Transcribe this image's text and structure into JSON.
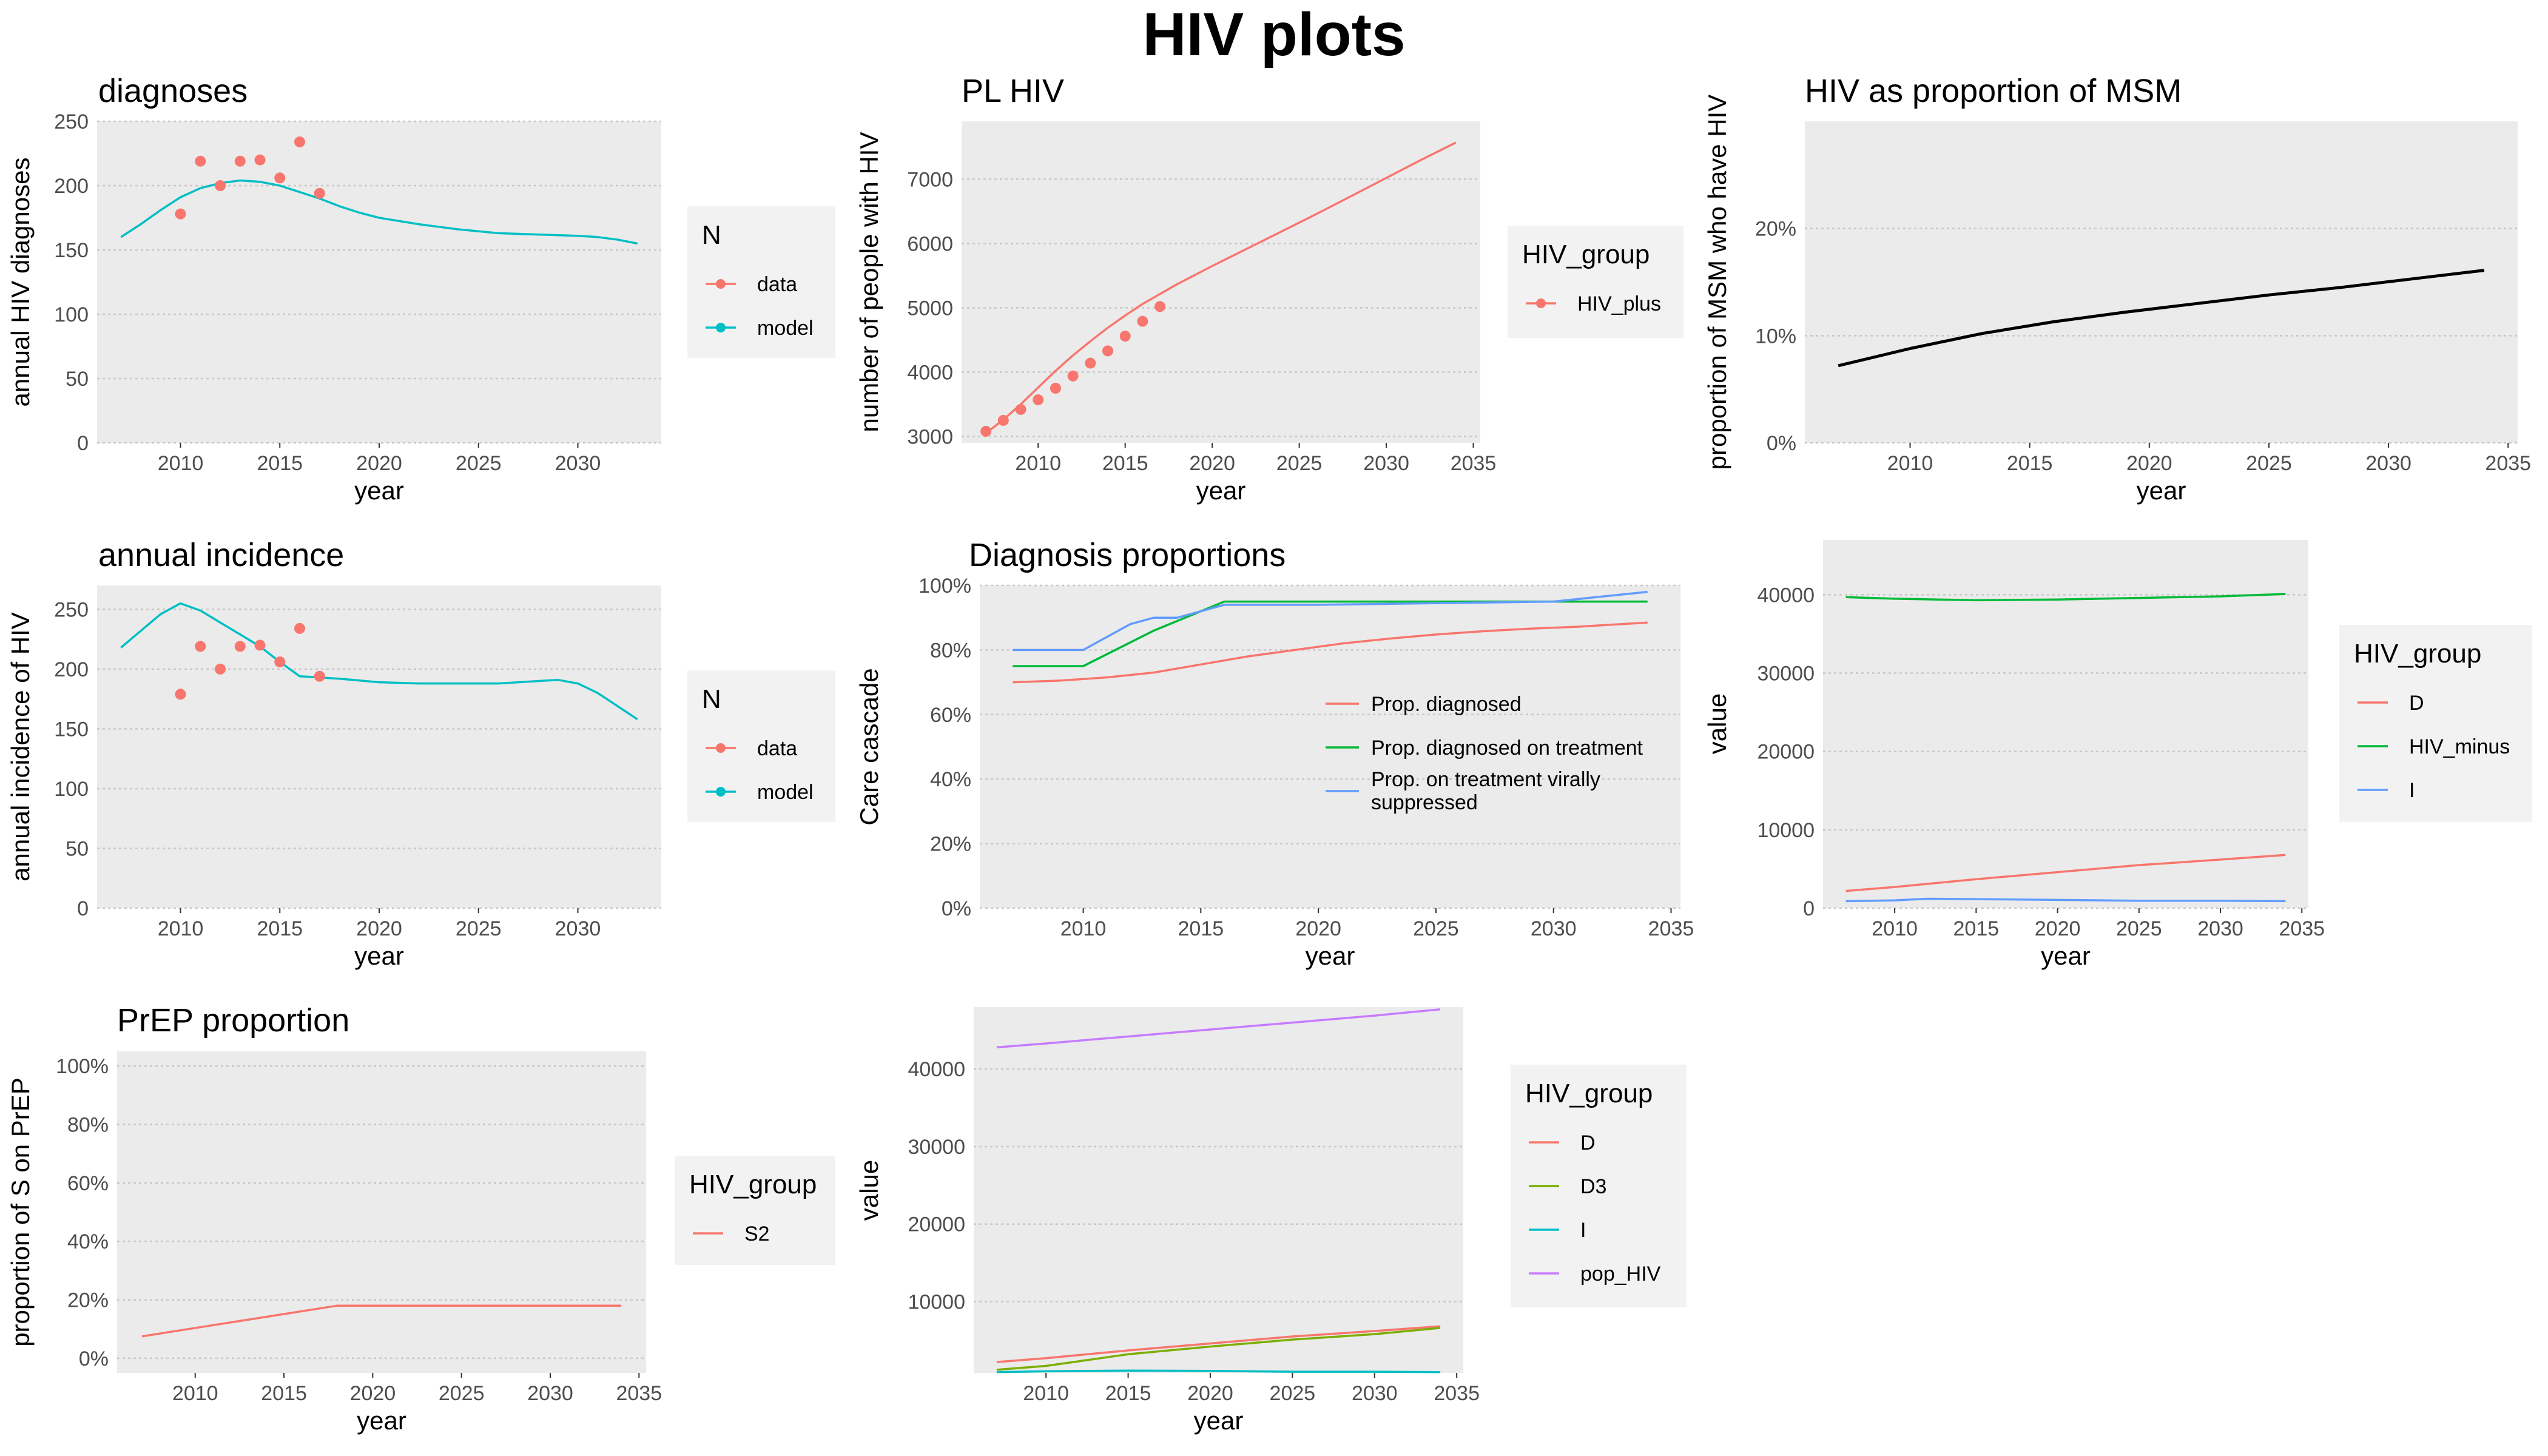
{
  "page": {
    "title": "HIV plots"
  },
  "colors": {
    "panel_bg": "#EBEBEB",
    "grid": "#C8C8C8",
    "axis_text": "#4D4D4D",
    "text": "#000000",
    "red": "#F8766D",
    "teal": "#00BFC4",
    "green3": "#00BA38",
    "blue3": "#619CFF",
    "olive4": "#7CAE00",
    "cyan4": "#00BFC4",
    "purple4": "#C77CFF",
    "black": "#000000"
  },
  "chart_data": [
    {
      "id": "diagnoses",
      "type": "line",
      "title": "diagnoses",
      "xlabel": "year",
      "ylabel": "annual HIV diagnoses",
      "xlim": [
        2005.8,
        2034.2
      ],
      "ylim": [
        0,
        250
      ],
      "x_ticks": [
        2010,
        2015,
        2020,
        2025,
        2030
      ],
      "y_ticks": [
        0,
        50,
        100,
        150,
        200,
        250
      ],
      "x_tick_labels": [
        "2010",
        "2015",
        "2020",
        "2025",
        "2030"
      ],
      "y_tick_labels": [
        "0",
        "50",
        "100",
        "150",
        "200",
        "250"
      ],
      "legend_position": "right",
      "legend": {
        "title": "N",
        "items": [
          {
            "label": "data",
            "color": "#F8766D",
            "line": true,
            "point": true
          },
          {
            "label": "model",
            "color": "#00BFC4",
            "line": true,
            "point": true
          }
        ]
      },
      "series": [
        {
          "name": "model",
          "kind": "line",
          "color": "#00BFC4",
          "x": [
            2007,
            2008,
            2009,
            2010,
            2011,
            2012,
            2013,
            2014,
            2015,
            2016,
            2017,
            2018,
            2019,
            2020,
            2022,
            2024,
            2026,
            2028,
            2030,
            2031,
            2032,
            2033
          ],
          "y": [
            160,
            170,
            181,
            191,
            198,
            202,
            204,
            203,
            200,
            195,
            190,
            184,
            179,
            175,
            170,
            166,
            163,
            162,
            161,
            160,
            158,
            155
          ]
        },
        {
          "name": "data",
          "kind": "points",
          "color": "#F8766D",
          "x": [
            2010,
            2011,
            2012,
            2013,
            2014,
            2015,
            2016,
            2017
          ],
          "y": [
            178,
            219,
            200,
            219,
            220,
            206,
            234,
            194
          ]
        }
      ]
    },
    {
      "id": "pl_hiv",
      "type": "line",
      "title": "PL HIV",
      "xlabel": "year",
      "ylabel": "number of people with HIV",
      "xlim": [
        2005.6,
        2035.4
      ],
      "ylim": [
        2900,
        7900
      ],
      "x_ticks": [
        2010,
        2015,
        2020,
        2025,
        2030,
        2035
      ],
      "y_ticks": [
        3000,
        4000,
        5000,
        6000,
        7000
      ],
      "x_tick_labels": [
        "2010",
        "2015",
        "2020",
        "2025",
        "2030",
        "2035"
      ],
      "y_tick_labels": [
        "3000",
        "4000",
        "5000",
        "6000",
        "7000"
      ],
      "legend_position": "right",
      "legend": {
        "title": "HIV_group",
        "items": [
          {
            "label": "HIV_plus",
            "color": "#F8766D",
            "line": true,
            "point": true
          }
        ]
      },
      "series": [
        {
          "name": "model",
          "kind": "line",
          "color": "#F8766D",
          "x": [
            2007,
            2008,
            2009,
            2010,
            2011,
            2012,
            2013,
            2014,
            2015,
            2016,
            2018,
            2020,
            2022,
            2024,
            2026,
            2028,
            2030,
            2032,
            2034
          ],
          "y": [
            3050,
            3260,
            3500,
            3760,
            4020,
            4260,
            4480,
            4690,
            4880,
            5060,
            5370,
            5650,
            5920,
            6190,
            6460,
            6740,
            7020,
            7300,
            7570
          ]
        },
        {
          "name": "data",
          "kind": "points",
          "color": "#F8766D",
          "x": [
            2007,
            2008,
            2009,
            2010,
            2011,
            2012,
            2013,
            2014,
            2015,
            2016,
            2017
          ],
          "y": [
            3080,
            3250,
            3420,
            3570,
            3750,
            3940,
            4140,
            4330,
            4560,
            4790,
            5020
          ]
        }
      ]
    },
    {
      "id": "hiv_prop_msm",
      "type": "line",
      "title": "HIV as proportion of MSM",
      "xlabel": "year",
      "ylabel": "proportion of MSM who have HIV",
      "xlim": [
        2005.6,
        2035.4
      ],
      "ylim": [
        0,
        0.3
      ],
      "x_ticks": [
        2010,
        2015,
        2020,
        2025,
        2030,
        2035
      ],
      "y_ticks": [
        0,
        0.1,
        0.2
      ],
      "x_tick_labels": [
        "2010",
        "2015",
        "2020",
        "2025",
        "2030",
        "2035"
      ],
      "y_tick_labels": [
        "0%",
        "10%",
        "20%"
      ],
      "legend_position": "none",
      "legend": null,
      "series": [
        {
          "name": "model",
          "kind": "line",
          "color": "#000000",
          "width": 5,
          "x": [
            2007,
            2010,
            2013,
            2016,
            2019,
            2022,
            2025,
            2028,
            2031,
            2034
          ],
          "y": [
            0.072,
            0.088,
            0.102,
            0.113,
            0.122,
            0.13,
            0.138,
            0.145,
            0.153,
            0.161
          ]
        }
      ]
    },
    {
      "id": "annual_incidence",
      "type": "line",
      "title": "annual incidence",
      "xlabel": "year",
      "ylabel": "annual incidence of HIV",
      "xlim": [
        2005.8,
        2034.2
      ],
      "ylim": [
        0,
        270
      ],
      "x_ticks": [
        2010,
        2015,
        2020,
        2025,
        2030
      ],
      "y_ticks": [
        0,
        50,
        100,
        150,
        200,
        250
      ],
      "x_tick_labels": [
        "2010",
        "2015",
        "2020",
        "2025",
        "2030"
      ],
      "y_tick_labels": [
        "0",
        "50",
        "100",
        "150",
        "200",
        "250"
      ],
      "legend_position": "right",
      "legend": {
        "title": "N",
        "items": [
          {
            "label": "data",
            "color": "#F8766D",
            "line": true,
            "point": true
          },
          {
            "label": "model",
            "color": "#00BFC4",
            "line": true,
            "point": true
          }
        ]
      },
      "series": [
        {
          "name": "model",
          "kind": "line",
          "color": "#00BFC4",
          "x": [
            2007,
            2008,
            2009,
            2010,
            2011,
            2012,
            2013,
            2014,
            2015,
            2016,
            2017,
            2018,
            2020,
            2022,
            2024,
            2026,
            2028,
            2029,
            2030,
            2031,
            2032,
            2033
          ],
          "y": [
            218,
            232,
            246,
            255,
            249,
            239,
            229,
            219,
            206,
            194,
            193,
            192,
            189,
            188,
            188,
            188,
            190,
            191,
            188,
            180,
            169,
            158
          ]
        },
        {
          "name": "data",
          "kind": "points",
          "color": "#F8766D",
          "x": [
            2010,
            2011,
            2012,
            2013,
            2014,
            2015,
            2016,
            2017
          ],
          "y": [
            179,
            219,
            200,
            219,
            220,
            206,
            234,
            194
          ]
        }
      ]
    },
    {
      "id": "diagnosis_proportions",
      "type": "line",
      "title": "Diagnosis proportions",
      "xlabel": "year",
      "ylabel": "Care cascade",
      "xlim": [
        2005.6,
        2035.4
      ],
      "ylim": [
        0,
        1.0
      ],
      "x_ticks": [
        2010,
        2015,
        2020,
        2025,
        2030,
        2035
      ],
      "y_ticks": [
        0,
        0.2,
        0.4,
        0.6,
        0.8,
        1.0
      ],
      "x_tick_labels": [
        "2010",
        "2015",
        "2020",
        "2025",
        "2030",
        "2035"
      ],
      "y_tick_labels": [
        "0%",
        "20%",
        "40%",
        "60%",
        "80%",
        "100%"
      ],
      "legend_position": "inside",
      "legend": {
        "title": "",
        "items": [
          {
            "label": "Prop. diagnosed",
            "color": "#F8766D",
            "line": true,
            "point": false
          },
          {
            "label": "Prop. diagnosed on treatment",
            "color": "#00BA38",
            "line": true,
            "point": false
          },
          {
            "label": "Prop. on treatment virally suppressed",
            "label_lines": [
              "Prop. on treatment virally",
              "suppressed"
            ],
            "color": "#619CFF",
            "line": true,
            "point": false
          }
        ]
      },
      "series": [
        {
          "name": "Prop. diagnosed",
          "kind": "line",
          "color": "#F8766D",
          "x": [
            2007,
            2009,
            2011,
            2013,
            2015,
            2017,
            2019,
            2021,
            2023,
            2025,
            2027,
            2029,
            2031,
            2034
          ],
          "y": [
            0.7,
            0.705,
            0.715,
            0.73,
            0.755,
            0.78,
            0.8,
            0.82,
            0.835,
            0.848,
            0.858,
            0.866,
            0.872,
            0.885
          ]
        },
        {
          "name": "Prop. diagnosed on treatment",
          "kind": "line",
          "color": "#00BA38",
          "x": [
            2007,
            2010,
            2013,
            2016,
            2020,
            2025,
            2030,
            2034
          ],
          "y": [
            0.75,
            0.75,
            0.86,
            0.95,
            0.95,
            0.95,
            0.95,
            0.95
          ]
        },
        {
          "name": "Prop. on treatment virally suppressed",
          "kind": "line",
          "color": "#619CFF",
          "x": [
            2007,
            2010,
            2012,
            2013,
            2014,
            2016,
            2020,
            2025,
            2030,
            2034
          ],
          "y": [
            0.8,
            0.8,
            0.88,
            0.9,
            0.9,
            0.94,
            0.94,
            0.945,
            0.95,
            0.98
          ]
        }
      ]
    },
    {
      "id": "groups_d_hivminus_i",
      "type": "line",
      "title": "",
      "xlabel": "year",
      "ylabel": "value",
      "xlim": [
        2005.6,
        2035.4
      ],
      "ylim": [
        0,
        47000
      ],
      "x_ticks": [
        2010,
        2015,
        2020,
        2025,
        2030,
        2035
      ],
      "y_ticks": [
        0,
        10000,
        20000,
        30000,
        40000
      ],
      "x_tick_labels": [
        "2010",
        "2015",
        "2020",
        "2025",
        "2030",
        "2035"
      ],
      "y_tick_labels": [
        "0",
        "10000",
        "20000",
        "30000",
        "40000"
      ],
      "legend_position": "right",
      "legend": {
        "title": "HIV_group",
        "items": [
          {
            "label": "D",
            "color": "#F8766D",
            "line": true,
            "point": false
          },
          {
            "label": "HIV_minus",
            "color": "#00BA38",
            "line": true,
            "point": false
          },
          {
            "label": "I",
            "color": "#619CFF",
            "line": true,
            "point": false
          }
        ]
      },
      "series": [
        {
          "name": "D",
          "kind": "line",
          "color": "#F8766D",
          "x": [
            2007,
            2010,
            2015,
            2020,
            2025,
            2030,
            2034
          ],
          "y": [
            2200,
            2700,
            3700,
            4600,
            5500,
            6200,
            6800
          ]
        },
        {
          "name": "HIV_minus",
          "kind": "line",
          "color": "#00BA38",
          "x": [
            2007,
            2010,
            2015,
            2020,
            2025,
            2030,
            2034
          ],
          "y": [
            39700,
            39500,
            39300,
            39400,
            39600,
            39800,
            40100
          ]
        },
        {
          "name": "I",
          "kind": "line",
          "color": "#619CFF",
          "x": [
            2007,
            2010,
            2012,
            2015,
            2020,
            2025,
            2030,
            2034
          ],
          "y": [
            900,
            1000,
            1200,
            1150,
            1050,
            950,
            950,
            900
          ]
        }
      ]
    },
    {
      "id": "prep_proportion",
      "type": "line",
      "title": "PrEP proportion",
      "xlabel": "year",
      "ylabel": "proportion of S on PrEP",
      "xlim": [
        2005.6,
        2035.4
      ],
      "ylim": [
        -0.05,
        1.05
      ],
      "x_ticks": [
        2010,
        2015,
        2020,
        2025,
        2030,
        2035
      ],
      "y_ticks": [
        0,
        0.2,
        0.4,
        0.6,
        0.8,
        1.0
      ],
      "x_tick_labels": [
        "2010",
        "2015",
        "2020",
        "2025",
        "2030",
        "2035"
      ],
      "y_tick_labels": [
        "0%",
        "20%",
        "40%",
        "60%",
        "80%",
        "100%"
      ],
      "legend_position": "right",
      "legend": {
        "title": "HIV_group",
        "items": [
          {
            "label": "S2",
            "color": "#F8766D",
            "line": true,
            "point": false
          }
        ]
      },
      "series": [
        {
          "name": "S2",
          "kind": "line",
          "color": "#F8766D",
          "x": [
            2007,
            2018,
            2034
          ],
          "y": [
            0.075,
            0.18,
            0.18
          ]
        }
      ]
    },
    {
      "id": "groups_d_d3_i_pop",
      "type": "line",
      "title": "",
      "xlabel": "year",
      "ylabel": "value",
      "xlim": [
        2005.6,
        2035.4
      ],
      "ylim": [
        800,
        48000
      ],
      "x_ticks": [
        2010,
        2015,
        2020,
        2025,
        2030,
        2035
      ],
      "y_ticks": [
        10000,
        20000,
        30000,
        40000
      ],
      "x_tick_labels": [
        "2010",
        "2015",
        "2020",
        "2025",
        "2030",
        "2035"
      ],
      "y_tick_labels": [
        "10000",
        "20000",
        "30000",
        "40000"
      ],
      "legend_position": "right",
      "legend": {
        "title": "HIV_group",
        "items": [
          {
            "label": "D",
            "color": "#F8766D",
            "line": true,
            "point": false
          },
          {
            "label": "D3",
            "color": "#7CAE00",
            "line": true,
            "point": false
          },
          {
            "label": "I",
            "color": "#00BFC4",
            "line": true,
            "point": false
          },
          {
            "label": "pop_HIV",
            "color": "#C77CFF",
            "line": true,
            "point": false
          }
        ]
      },
      "series": [
        {
          "name": "D",
          "kind": "line",
          "color": "#F8766D",
          "x": [
            2007,
            2010,
            2015,
            2020,
            2025,
            2030,
            2034
          ],
          "y": [
            2200,
            2700,
            3700,
            4600,
            5500,
            6200,
            6800
          ]
        },
        {
          "name": "D3",
          "kind": "line",
          "color": "#7CAE00",
          "x": [
            2007,
            2010,
            2015,
            2020,
            2025,
            2030,
            2034
          ],
          "y": [
            1200,
            1700,
            3200,
            4200,
            5100,
            5800,
            6600
          ]
        },
        {
          "name": "I",
          "kind": "line",
          "color": "#00BFC4",
          "x": [
            2007,
            2010,
            2015,
            2020,
            2025,
            2030,
            2034
          ],
          "y": [
            900,
            1000,
            1100,
            1050,
            950,
            950,
            900
          ]
        },
        {
          "name": "pop_HIV",
          "kind": "line",
          "color": "#C77CFF",
          "x": [
            2007,
            2010,
            2015,
            2020,
            2025,
            2030,
            2034
          ],
          "y": [
            42800,
            43300,
            44200,
            45100,
            46000,
            46900,
            47700
          ]
        }
      ]
    }
  ]
}
